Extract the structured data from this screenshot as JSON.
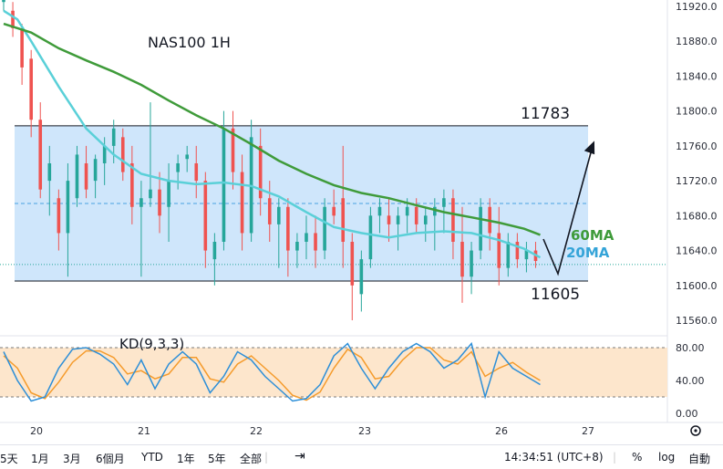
{
  "chart_data": {
    "type": "candlestick",
    "title": "NAS100 1H",
    "price_axis": {
      "ticks": [
        "11920.0",
        "11880.0",
        "11840.0",
        "11800.0",
        "11760.0",
        "11720.0",
        "11680.0",
        "11640.0",
        "11600.0",
        "11560.0"
      ],
      "ylim": [
        11540,
        11930
      ]
    },
    "time_axis": {
      "ticks": [
        "20",
        "21",
        "22",
        "23",
        "26",
        "27"
      ]
    },
    "range_box": {
      "top": 11783,
      "bottom": 11605,
      "mid": 11694
    },
    "annotations": {
      "top_label": "11783",
      "bottom_label": "11605",
      "ma60_label": "60MA",
      "ma20_label": "20MA"
    },
    "last_price": 11624,
    "ma60": [
      [
        0,
        11900
      ],
      [
        12,
        11890
      ],
      [
        24,
        11872
      ],
      [
        36,
        11858
      ],
      [
        48,
        11845
      ],
      [
        60,
        11830
      ],
      [
        72,
        11812
      ],
      [
        84,
        11795
      ],
      [
        96,
        11780
      ],
      [
        108,
        11762
      ],
      [
        120,
        11743
      ],
      [
        132,
        11728
      ],
      [
        144,
        11715
      ],
      [
        156,
        11706
      ],
      [
        168,
        11700
      ],
      [
        180,
        11692
      ],
      [
        192,
        11684
      ],
      [
        204,
        11678
      ],
      [
        216,
        11672
      ],
      [
        227,
        11665
      ],
      [
        234,
        11658
      ]
    ],
    "ma20": [
      [
        0,
        11915
      ],
      [
        6,
        11905
      ],
      [
        12,
        11880
      ],
      [
        24,
        11828
      ],
      [
        36,
        11780
      ],
      [
        48,
        11750
      ],
      [
        60,
        11728
      ],
      [
        72,
        11720
      ],
      [
        84,
        11716
      ],
      [
        96,
        11718
      ],
      [
        108,
        11714
      ],
      [
        120,
        11702
      ],
      [
        132,
        11684
      ],
      [
        144,
        11667
      ],
      [
        156,
        11660
      ],
      [
        168,
        11655
      ],
      [
        180,
        11660
      ],
      [
        192,
        11662
      ],
      [
        204,
        11660
      ],
      [
        216,
        11652
      ],
      [
        227,
        11642
      ],
      [
        234,
        11632
      ]
    ],
    "candles": [
      [
        0,
        11925,
        11935,
        11915,
        11930
      ],
      [
        4,
        11915,
        11925,
        11885,
        11895
      ],
      [
        8,
        11895,
        11900,
        11830,
        11850
      ],
      [
        12,
        11860,
        11870,
        11770,
        11790
      ],
      [
        16,
        11790,
        11810,
        11700,
        11710
      ],
      [
        20,
        11720,
        11760,
        11680,
        11740
      ],
      [
        24,
        11700,
        11710,
        11640,
        11660
      ],
      [
        28,
        11660,
        11740,
        11610,
        11720
      ],
      [
        32,
        11700,
        11760,
        11690,
        11750
      ],
      [
        36,
        11740,
        11760,
        11700,
        11710
      ],
      [
        40,
        11720,
        11750,
        11700,
        11745
      ],
      [
        44,
        11740,
        11770,
        11715,
        11760
      ],
      [
        48,
        11760,
        11790,
        11740,
        11780
      ],
      [
        52,
        11770,
        11780,
        11720,
        11730
      ],
      [
        56,
        11740,
        11760,
        11670,
        11690
      ],
      [
        60,
        11690,
        11720,
        11610,
        11700
      ],
      [
        64,
        11700,
        11810,
        11690,
        11710
      ],
      [
        68,
        11710,
        11730,
        11660,
        11680
      ],
      [
        72,
        11690,
        11740,
        11650,
        11720
      ],
      [
        76,
        11730,
        11750,
        11710,
        11740
      ],
      [
        80,
        11745,
        11760,
        11730,
        11750
      ],
      [
        84,
        11740,
        11760,
        11700,
        11720
      ],
      [
        88,
        11720,
        11730,
        11620,
        11640
      ],
      [
        92,
        11630,
        11660,
        11600,
        11650
      ],
      [
        96,
        11650,
        11800,
        11640,
        11780
      ],
      [
        100,
        11780,
        11800,
        11710,
        11730
      ],
      [
        104,
        11730,
        11750,
        11640,
        11660
      ],
      [
        108,
        11660,
        11790,
        11650,
        11770
      ],
      [
        112,
        11760,
        11780,
        11680,
        11700
      ],
      [
        116,
        11700,
        11720,
        11650,
        11670
      ],
      [
        120,
        11670,
        11700,
        11620,
        11690
      ],
      [
        124,
        11690,
        11700,
        11610,
        11640
      ],
      [
        128,
        11640,
        11660,
        11620,
        11650
      ],
      [
        132,
        11650,
        11680,
        11630,
        11660
      ],
      [
        136,
        11660,
        11680,
        11620,
        11640
      ],
      [
        140,
        11640,
        11700,
        11630,
        11690
      ],
      [
        144,
        11690,
        11710,
        11670,
        11680
      ],
      [
        148,
        11700,
        11760,
        11620,
        11650
      ],
      [
        152,
        11650,
        11660,
        11560,
        11600
      ],
      [
        156,
        11590,
        11640,
        11570,
        11630
      ],
      [
        160,
        11630,
        11690,
        11620,
        11680
      ],
      [
        164,
        11680,
        11700,
        11660,
        11690
      ],
      [
        168,
        11680,
        11700,
        11650,
        11670
      ],
      [
        172,
        11670,
        11690,
        11640,
        11680
      ],
      [
        176,
        11680,
        11700,
        11660,
        11690
      ],
      [
        180,
        11690,
        11700,
        11660,
        11670
      ],
      [
        184,
        11670,
        11690,
        11650,
        11680
      ],
      [
        188,
        11680,
        11700,
        11640,
        11690
      ],
      [
        192,
        11690,
        11710,
        11660,
        11700
      ],
      [
        196,
        11700,
        11710,
        11630,
        11650
      ],
      [
        200,
        11650,
        11690,
        11580,
        11610
      ],
      [
        204,
        11610,
        11650,
        11590,
        11640
      ],
      [
        208,
        11640,
        11700,
        11630,
        11690
      ],
      [
        212,
        11690,
        11700,
        11640,
        11660
      ],
      [
        216,
        11660,
        11690,
        11600,
        11620
      ],
      [
        220,
        11620,
        11660,
        11610,
        11650
      ],
      [
        224,
        11650,
        11660,
        11620,
        11630
      ],
      [
        228,
        11630,
        11650,
        11615,
        11640
      ],
      [
        232,
        11640,
        11650,
        11620,
        11628
      ]
    ],
    "kd": {
      "label": "KD(9,3,3)",
      "ticks": [
        "80.00",
        "40.00",
        "0.00"
      ],
      "bands": [
        80,
        20
      ],
      "k": [
        [
          0,
          75
        ],
        [
          6,
          40
        ],
        [
          12,
          15
        ],
        [
          18,
          20
        ],
        [
          24,
          55
        ],
        [
          30,
          78
        ],
        [
          36,
          80
        ],
        [
          42,
          72
        ],
        [
          48,
          60
        ],
        [
          54,
          35
        ],
        [
          60,
          65
        ],
        [
          66,
          30
        ],
        [
          72,
          60
        ],
        [
          78,
          75
        ],
        [
          84,
          60
        ],
        [
          90,
          25
        ],
        [
          96,
          45
        ],
        [
          102,
          75
        ],
        [
          108,
          65
        ],
        [
          114,
          45
        ],
        [
          120,
          30
        ],
        [
          126,
          15
        ],
        [
          132,
          18
        ],
        [
          138,
          35
        ],
        [
          144,
          70
        ],
        [
          150,
          85
        ],
        [
          156,
          55
        ],
        [
          162,
          30
        ],
        [
          168,
          55
        ],
        [
          174,
          75
        ],
        [
          180,
          85
        ],
        [
          186,
          75
        ],
        [
          192,
          55
        ],
        [
          198,
          65
        ],
        [
          204,
          85
        ],
        [
          210,
          20
        ],
        [
          216,
          75
        ],
        [
          222,
          55
        ],
        [
          228,
          45
        ],
        [
          234,
          35
        ]
      ],
      "d": [
        [
          0,
          70
        ],
        [
          6,
          55
        ],
        [
          12,
          25
        ],
        [
          18,
          18
        ],
        [
          24,
          38
        ],
        [
          30,
          62
        ],
        [
          36,
          76
        ],
        [
          42,
          76
        ],
        [
          48,
          68
        ],
        [
          54,
          48
        ],
        [
          60,
          52
        ],
        [
          66,
          42
        ],
        [
          72,
          48
        ],
        [
          78,
          68
        ],
        [
          84,
          68
        ],
        [
          90,
          42
        ],
        [
          96,
          38
        ],
        [
          102,
          60
        ],
        [
          108,
          70
        ],
        [
          114,
          55
        ],
        [
          120,
          40
        ],
        [
          126,
          22
        ],
        [
          132,
          16
        ],
        [
          138,
          26
        ],
        [
          144,
          55
        ],
        [
          150,
          78
        ],
        [
          156,
          68
        ],
        [
          162,
          42
        ],
        [
          168,
          45
        ],
        [
          174,
          65
        ],
        [
          180,
          80
        ],
        [
          186,
          80
        ],
        [
          192,
          65
        ],
        [
          198,
          60
        ],
        [
          204,
          75
        ],
        [
          210,
          45
        ],
        [
          216,
          55
        ],
        [
          222,
          62
        ],
        [
          228,
          50
        ],
        [
          234,
          40
        ]
      ]
    }
  },
  "toolbar": {
    "items": [
      "5天",
      "1月",
      "3月",
      "6個月",
      "YTD",
      "1年",
      "5年",
      "全部"
    ],
    "time": "14:34:51 (UTC+8)",
    "percent_label": "%",
    "log_label": "log",
    "auto_label": "自動"
  },
  "colors": {
    "up": "#26a69a",
    "down": "#ef5350",
    "ma60": "#3f9b3a",
    "ma20": "#5ad0d8",
    "box": "#cfe6fb",
    "k": "#2d8fd8",
    "d": "#f59b2b",
    "kd_band": "#fde6cc"
  }
}
